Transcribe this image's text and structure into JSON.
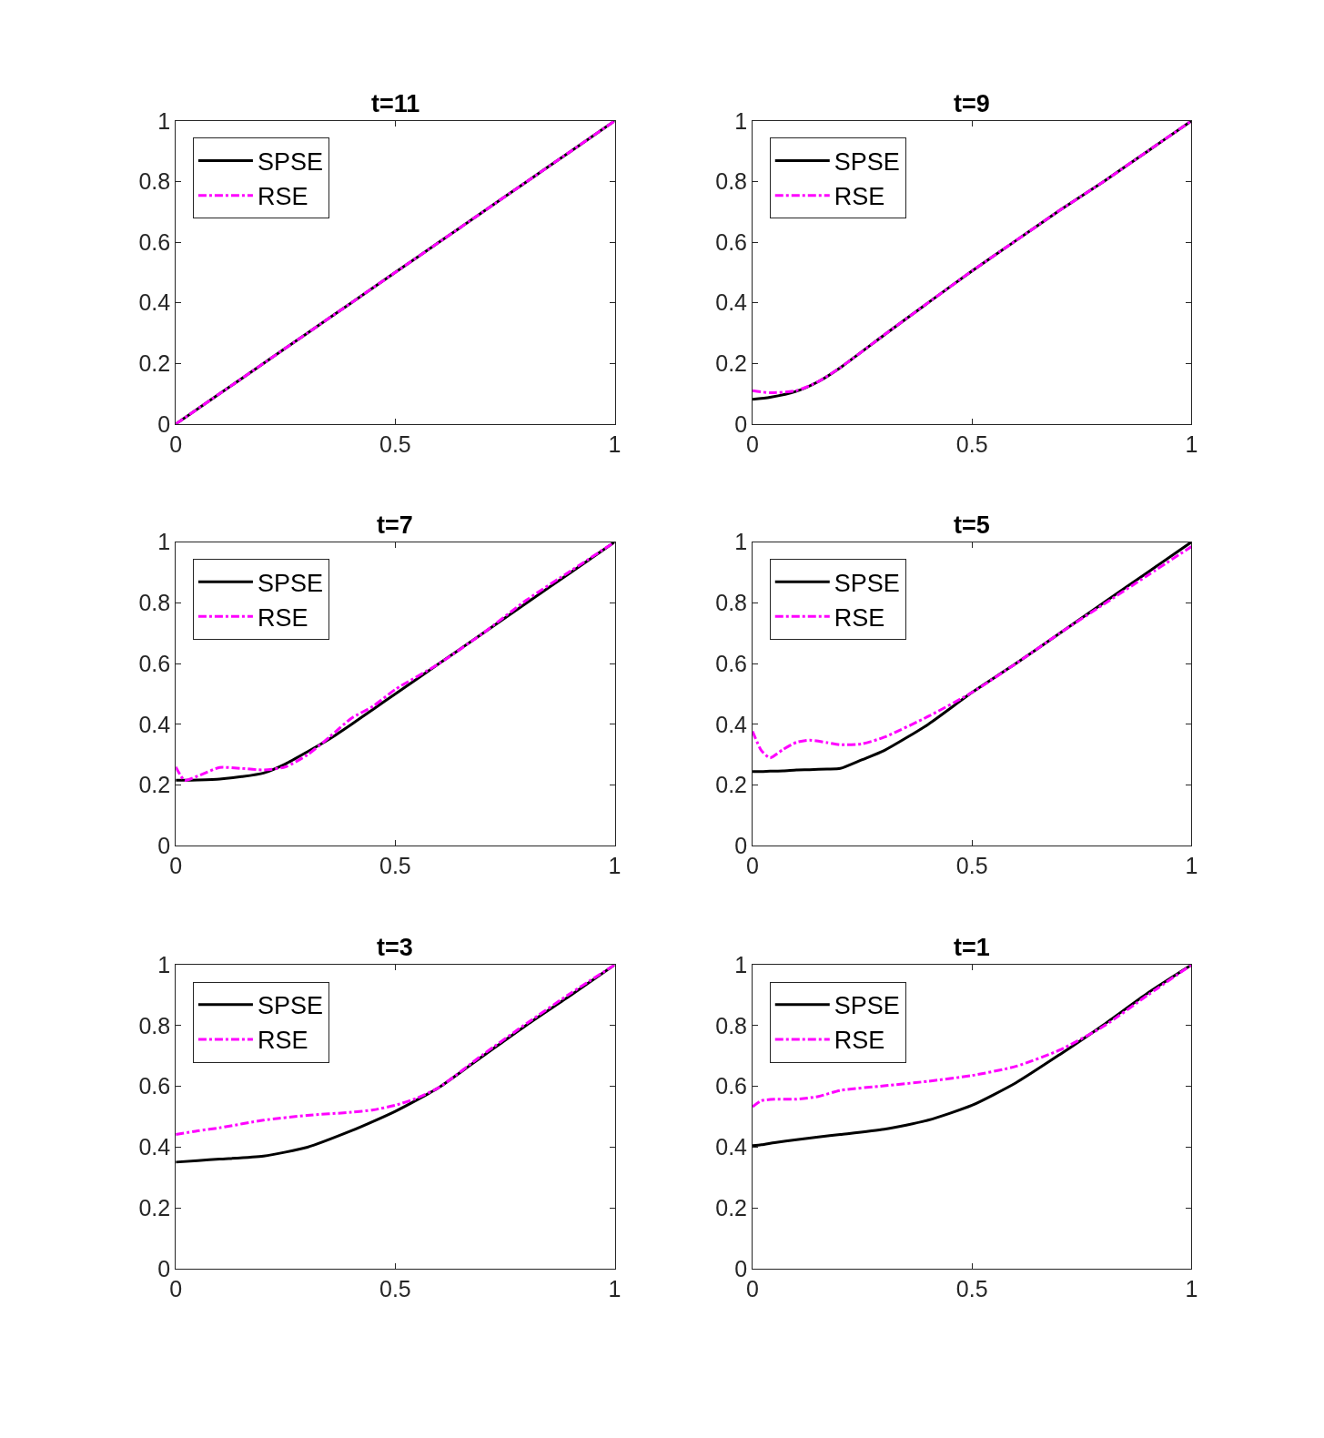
{
  "chart_data": [
    {
      "type": "line",
      "title": "t=11",
      "x": [
        0,
        0.1,
        0.2,
        0.3,
        0.4,
        0.5,
        0.6,
        0.7,
        0.8,
        0.9,
        1
      ],
      "xlim": [
        0,
        1
      ],
      "ylim": [
        0,
        1
      ],
      "xticks": [
        0,
        0.5,
        1
      ],
      "yticks": [
        0,
        0.2,
        0.4,
        0.6,
        0.8,
        1
      ],
      "legend": "top left",
      "grid": false,
      "series": [
        {
          "name": "SPSE",
          "color": "#000000",
          "line_style": "solid",
          "values": [
            0,
            0.1,
            0.2,
            0.3,
            0.4,
            0.5,
            0.6,
            0.7,
            0.8,
            0.9,
            1
          ]
        },
        {
          "name": "RSE",
          "color": "#ff00ff",
          "line_style": "dashdot",
          "values": [
            0,
            0.1,
            0.2,
            0.3,
            0.4,
            0.5,
            0.6,
            0.7,
            0.8,
            0.9,
            1
          ]
        }
      ]
    },
    {
      "type": "line",
      "title": "t=9",
      "x": [
        0,
        0.04,
        0.1,
        0.15,
        0.2,
        0.3,
        0.4,
        0.5,
        0.6,
        0.7,
        0.8,
        0.9,
        1
      ],
      "xlim": [
        0,
        1
      ],
      "ylim": [
        0,
        1
      ],
      "xticks": [
        0,
        0.5,
        1
      ],
      "yticks": [
        0,
        0.2,
        0.4,
        0.6,
        0.8,
        1
      ],
      "legend": "top left",
      "grid": false,
      "series": [
        {
          "name": "SPSE",
          "color": "#000000",
          "line_style": "solid",
          "values": [
            0.081,
            0.088,
            0.108,
            0.14,
            0.186,
            0.294,
            0.4,
            0.505,
            0.605,
            0.705,
            0.8,
            0.9,
            1
          ]
        },
        {
          "name": "RSE",
          "color": "#ff00ff",
          "line_style": "dashdot",
          "values": [
            0.11,
            0.103,
            0.11,
            0.14,
            0.186,
            0.294,
            0.4,
            0.505,
            0.605,
            0.705,
            0.8,
            0.9,
            1
          ]
        }
      ]
    },
    {
      "type": "line",
      "title": "t=7",
      "x": [
        0,
        0.02,
        0.05,
        0.1,
        0.15,
        0.2,
        0.25,
        0.3,
        0.35,
        0.4,
        0.45,
        0.5,
        0.6,
        0.7,
        0.8,
        0.9,
        1
      ],
      "xlim": [
        0,
        1
      ],
      "ylim": [
        0,
        1
      ],
      "xticks": [
        0,
        0.5,
        1
      ],
      "yticks": [
        0,
        0.2,
        0.4,
        0.6,
        0.8,
        1
      ],
      "legend": "top left",
      "grid": false,
      "series": [
        {
          "name": "SPSE",
          "color": "#000000",
          "line_style": "solid",
          "values": [
            0.216,
            0.216,
            0.217,
            0.22,
            0.228,
            0.24,
            0.27,
            0.31,
            0.352,
            0.4,
            0.45,
            0.5,
            0.6,
            0.7,
            0.8,
            0.9,
            1
          ]
        },
        {
          "name": "RSE",
          "color": "#ff00ff",
          "line_style": "dashdot",
          "values": [
            0.26,
            0.216,
            0.23,
            0.258,
            0.255,
            0.25,
            0.26,
            0.3,
            0.358,
            0.42,
            0.46,
            0.515,
            0.6,
            0.7,
            0.81,
            0.905,
            1
          ]
        }
      ]
    },
    {
      "type": "line",
      "title": "t=5",
      "x": [
        0,
        0.02,
        0.04,
        0.07,
        0.1,
        0.13,
        0.17,
        0.2,
        0.25,
        0.3,
        0.4,
        0.5,
        0.6,
        0.7,
        0.8,
        0.9,
        1
      ],
      "xlim": [
        0,
        1
      ],
      "ylim": [
        0,
        1
      ],
      "xticks": [
        0,
        0.5,
        1
      ],
      "yticks": [
        0,
        0.2,
        0.4,
        0.6,
        0.8,
        1
      ],
      "legend": "top left",
      "grid": false,
      "series": [
        {
          "name": "SPSE",
          "color": "#000000",
          "line_style": "solid",
          "values": [
            0.245,
            0.245,
            0.246,
            0.247,
            0.25,
            0.251,
            0.253,
            0.255,
            0.284,
            0.314,
            0.4,
            0.505,
            0.6,
            0.7,
            0.8,
            0.9,
            1
          ]
        },
        {
          "name": "RSE",
          "color": "#ff00ff",
          "line_style": "dashdot",
          "values": [
            0.377,
            0.314,
            0.29,
            0.318,
            0.341,
            0.348,
            0.34,
            0.333,
            0.336,
            0.358,
            0.426,
            0.505,
            0.6,
            0.7,
            0.795,
            0.89,
            0.985
          ]
        }
      ]
    },
    {
      "type": "line",
      "title": "t=3",
      "x": [
        0,
        0.05,
        0.1,
        0.2,
        0.3,
        0.4,
        0.45,
        0.5,
        0.55,
        0.6,
        0.7,
        0.8,
        0.9,
        1
      ],
      "xlim": [
        0,
        1
      ],
      "ylim": [
        0,
        1
      ],
      "xticks": [
        0,
        0.5,
        1
      ],
      "yticks": [
        0,
        0.2,
        0.4,
        0.6,
        0.8,
        1
      ],
      "legend": "top left",
      "grid": false,
      "series": [
        {
          "name": "SPSE",
          "color": "#000000",
          "line_style": "solid",
          "values": [
            0.351,
            0.356,
            0.361,
            0.371,
            0.4,
            0.454,
            0.485,
            0.518,
            0.556,
            0.597,
            0.7,
            0.803,
            0.9,
            1
          ]
        },
        {
          "name": "RSE",
          "color": "#ff00ff",
          "line_style": "dashdot",
          "values": [
            0.442,
            0.454,
            0.464,
            0.489,
            0.505,
            0.515,
            0.523,
            0.538,
            0.562,
            0.597,
            0.705,
            0.808,
            0.907,
            1
          ]
        }
      ]
    },
    {
      "type": "line",
      "title": "t=1",
      "x": [
        0,
        0.02,
        0.05,
        0.1,
        0.15,
        0.2,
        0.3,
        0.4,
        0.5,
        0.6,
        0.7,
        0.8,
        0.9,
        1
      ],
      "xlim": [
        0,
        1
      ],
      "ylim": [
        0,
        1
      ],
      "xticks": [
        0,
        0.5,
        1
      ],
      "yticks": [
        0,
        0.2,
        0.4,
        0.6,
        0.8,
        1
      ],
      "legend": "top left",
      "grid": false,
      "series": [
        {
          "name": "SPSE",
          "color": "#000000",
          "line_style": "solid",
          "values": [
            0.405,
            0.408,
            0.415,
            0.425,
            0.434,
            0.442,
            0.459,
            0.489,
            0.538,
            0.612,
            0.705,
            0.803,
            0.907,
            1
          ]
        },
        {
          "name": "RSE",
          "color": "#ff00ff",
          "line_style": "dashdot",
          "values": [
            0.533,
            0.553,
            0.558,
            0.558,
            0.567,
            0.587,
            0.602,
            0.617,
            0.636,
            0.666,
            0.72,
            0.798,
            0.9,
            1
          ]
        }
      ]
    }
  ]
}
